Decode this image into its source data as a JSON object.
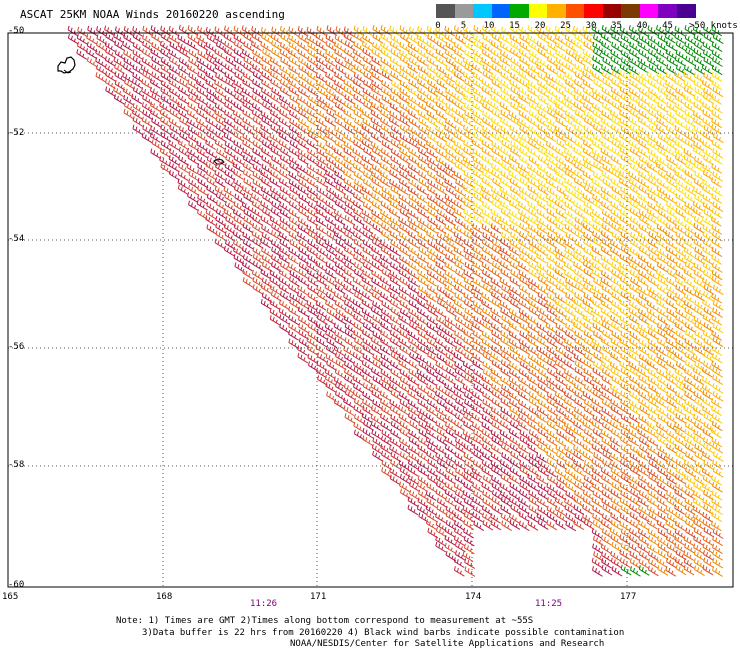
{
  "title": "ASCAT 25KM NOAA Winds 20160220 ascending",
  "legend": {
    "labels": [
      "0",
      "5",
      "10",
      "15",
      "20",
      "25",
      "30",
      "35",
      "40",
      "45",
      ">50 knots"
    ],
    "colors": [
      "#555555",
      "#9a9a9a",
      "#00c8ff",
      "#0064ff",
      "#00aa00",
      "#ffff00",
      "#ffb000",
      "#ff5000",
      "#ff0000",
      "#990000",
      "#7a3a00",
      "#ff00ff",
      "#8000c0",
      "#4a0090"
    ]
  },
  "map": {
    "lat_labels": [
      "-50",
      "-52",
      "-54",
      "-56",
      "-58",
      "-60"
    ],
    "lon_labels": [
      "165",
      "168",
      "171",
      "174",
      "177"
    ],
    "time_labels": [
      "11:26",
      "11:25"
    ]
  },
  "notes": {
    "line1": "Note: 1) Times are GMT 2)Times along bottom correspond to measurement at ~55S",
    "line2": "3)Data buffer is 22 hrs from 20160220 4) Black wind barbs indicate possible contamination",
    "line3": "NOAA/NESDIS/Center for Satellite Applications and Research"
  }
}
